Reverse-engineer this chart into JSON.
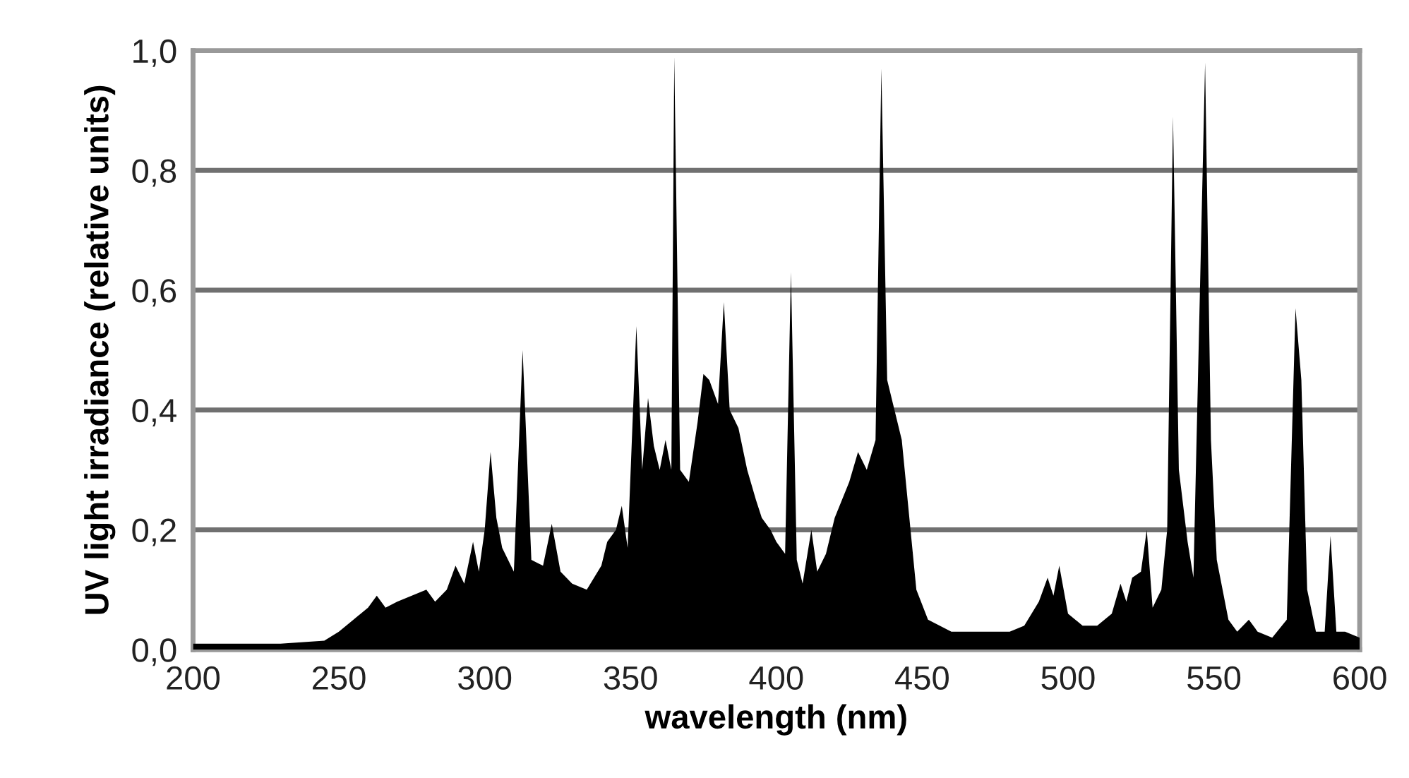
{
  "chart_data": {
    "type": "area",
    "xlabel": "wavelength (nm)",
    "ylabel": "UV light irradiance (relative units)",
    "x": [
      200,
      230,
      245,
      250,
      255,
      260,
      263,
      266,
      270,
      275,
      280,
      283,
      287,
      290,
      293,
      296,
      298,
      300,
      302,
      304,
      306,
      310,
      313,
      316,
      320,
      323,
      326,
      330,
      335,
      340,
      342,
      345,
      347,
      349,
      352,
      354,
      356,
      358,
      360,
      362,
      364,
      365,
      367,
      370,
      373,
      375,
      377,
      380,
      382,
      384,
      387,
      390,
      393,
      395,
      398,
      400,
      403,
      405,
      407,
      409,
      412,
      414,
      417,
      420,
      425,
      428,
      431,
      434,
      436,
      438,
      440,
      443,
      446,
      448,
      452,
      460,
      470,
      480,
      485,
      490,
      493,
      495,
      497,
      500,
      505,
      510,
      515,
      518,
      520,
      522,
      525,
      527,
      529,
      532,
      534,
      536,
      538,
      541,
      543,
      547,
      549,
      551,
      555,
      558,
      562,
      565,
      570,
      575,
      578,
      580,
      582,
      585,
      588,
      590,
      592,
      595,
      600
    ],
    "series": [
      {
        "color": "#000000",
        "values": [
          0.01,
          0.01,
          0.015,
          0.03,
          0.05,
          0.07,
          0.09,
          0.07,
          0.08,
          0.09,
          0.1,
          0.08,
          0.1,
          0.14,
          0.11,
          0.18,
          0.13,
          0.2,
          0.33,
          0.22,
          0.17,
          0.13,
          0.5,
          0.15,
          0.14,
          0.21,
          0.13,
          0.11,
          0.1,
          0.14,
          0.18,
          0.2,
          0.24,
          0.17,
          0.54,
          0.3,
          0.42,
          0.34,
          0.3,
          0.35,
          0.3,
          0.99,
          0.3,
          0.28,
          0.38,
          0.46,
          0.45,
          0.41,
          0.58,
          0.4,
          0.37,
          0.3,
          0.25,
          0.22,
          0.2,
          0.18,
          0.16,
          0.63,
          0.15,
          0.11,
          0.2,
          0.13,
          0.16,
          0.22,
          0.28,
          0.33,
          0.3,
          0.35,
          0.97,
          0.45,
          0.41,
          0.35,
          0.2,
          0.1,
          0.05,
          0.03,
          0.03,
          0.03,
          0.04,
          0.08,
          0.12,
          0.09,
          0.14,
          0.06,
          0.04,
          0.04,
          0.06,
          0.11,
          0.08,
          0.12,
          0.13,
          0.2,
          0.07,
          0.1,
          0.2,
          0.89,
          0.3,
          0.18,
          0.12,
          0.98,
          0.35,
          0.15,
          0.05,
          0.03,
          0.05,
          0.03,
          0.02,
          0.05,
          0.57,
          0.45,
          0.1,
          0.03,
          0.03,
          0.19,
          0.03,
          0.03,
          0.02
        ]
      }
    ],
    "xlim": [
      200,
      600
    ],
    "xticks": [
      200,
      250,
      300,
      350,
      400,
      450,
      500,
      550,
      600
    ],
    "ylim": [
      0,
      1.0
    ],
    "yticks": [
      {
        "value": 0,
        "label": "0,0"
      },
      {
        "value": 0.2,
        "label": "0,2"
      },
      {
        "value": 0.4,
        "label": "0,4"
      },
      {
        "value": 0.6,
        "label": "0,6"
      },
      {
        "value": 0.8,
        "label": "0,8"
      },
      {
        "value": 1.0,
        "label": "1,0"
      }
    ],
    "grid": "y"
  }
}
